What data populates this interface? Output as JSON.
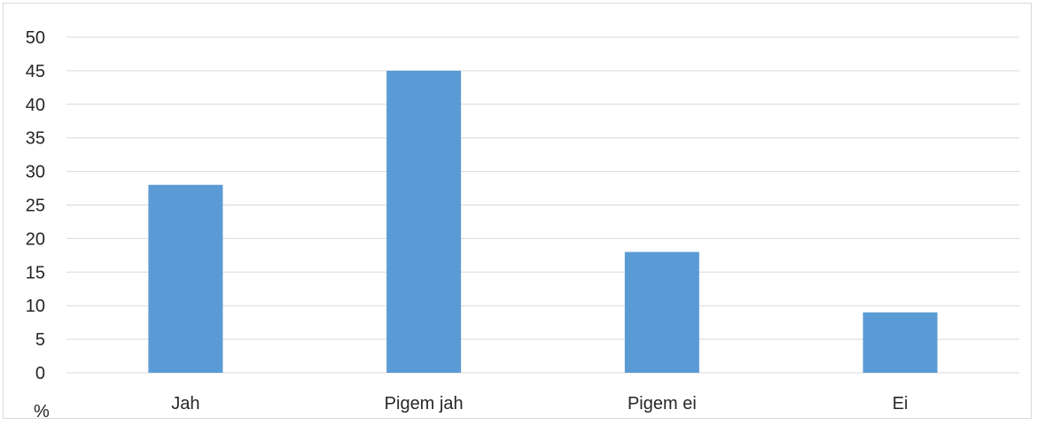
{
  "chart_data": {
    "type": "bar",
    "categories": [
      "Jah",
      "Pigem jah",
      "Pigem ei",
      "Ei"
    ],
    "values": [
      28,
      45,
      18,
      9
    ],
    "ylim": [
      0,
      50
    ],
    "ytick_step": 5,
    "ylabel": "%",
    "xlabel": "",
    "grid": true,
    "legend": "none",
    "colors": {
      "bar": "#5b9bd5",
      "grid": "#d9d9d9",
      "text": "#262626"
    }
  }
}
